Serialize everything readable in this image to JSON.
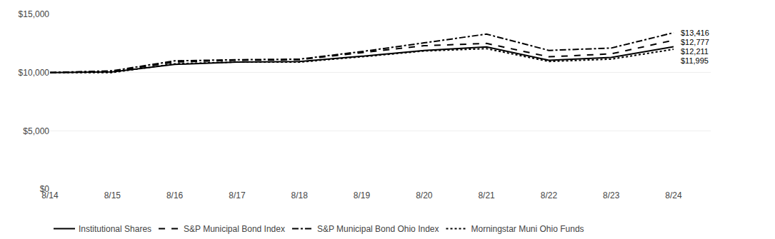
{
  "chart_data": {
    "type": "line",
    "categories": [
      "8/14",
      "8/15",
      "8/16",
      "8/17",
      "8/18",
      "8/19",
      "8/20",
      "8/21",
      "8/22",
      "8/23",
      "8/24"
    ],
    "series": [
      {
        "name": "Institutional Shares",
        "color": "#000000",
        "line_style": "solid",
        "values": [
          10000,
          10050,
          10700,
          10900,
          10950,
          11400,
          11900,
          12200,
          11050,
          11300,
          12211
        ]
      },
      {
        "name": "S&P Municipal Bond Index",
        "color": "#000000",
        "line_style": "dash",
        "values": [
          10000,
          10100,
          10900,
          11050,
          11100,
          11700,
          12300,
          12500,
          11350,
          11600,
          12777
        ]
      },
      {
        "name": "S&P Municipal Bond Ohio Index",
        "color": "#000000",
        "line_style": "dashdot",
        "values": [
          10000,
          10150,
          11000,
          11100,
          11150,
          11800,
          12550,
          13300,
          11900,
          12100,
          13416
        ]
      },
      {
        "name": "Morningstar Muni Ohio Funds",
        "color": "#000000",
        "line_style": "dot",
        "values": [
          10000,
          10000,
          10750,
          10900,
          10900,
          11350,
          11850,
          12050,
          10950,
          11150,
          11995
        ]
      }
    ],
    "ylim": [
      0,
      15000
    ],
    "yticks": [
      {
        "value": 0,
        "label": "$0"
      },
      {
        "value": 5000,
        "label": "$5,000"
      },
      {
        "value": 10000,
        "label": "$10,000"
      },
      {
        "value": 15000,
        "label": "$15,000"
      }
    ],
    "grid": true,
    "legend": "bottom",
    "annotations": [
      {
        "text": "$13,416",
        "x": "8/24",
        "y": 13416
      },
      {
        "text": "$12,777",
        "x": "8/24",
        "y": 12777
      },
      {
        "text": "$12,211",
        "x": "8/24",
        "y": 12211
      },
      {
        "text": "$11,995",
        "x": "8/24",
        "y": 11995
      }
    ]
  }
}
